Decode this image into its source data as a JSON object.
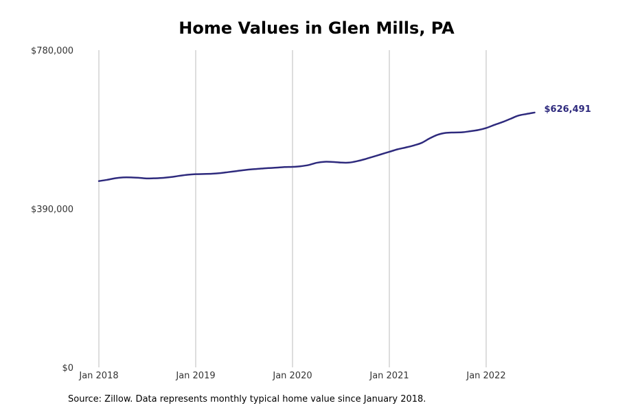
{
  "chart_data": {
    "type": "line",
    "title": "Home Values in Glen Mills, PA",
    "xlabel": "",
    "ylabel": "",
    "grid": "vertical",
    "ylim": [
      0,
      780000
    ],
    "yticks": [
      0,
      390000,
      780000
    ],
    "ytick_labels": [
      "$0",
      "$390,000",
      "$780,000"
    ],
    "xticks": [
      "2018-01",
      "2019-01",
      "2020-01",
      "2021-01",
      "2022-01"
    ],
    "xtick_labels": [
      "Jan 2018",
      "Jan 2019",
      "Jan 2020",
      "Jan 2021",
      "Jan 2022"
    ],
    "line_color": "#2e2a7d",
    "grid_color": "#bbbbbb",
    "end_label": "$626,491",
    "series": [
      {
        "x": [
          "2018-01",
          "2018-02",
          "2018-03",
          "2018-04",
          "2018-05",
          "2018-06",
          "2018-07",
          "2018-08",
          "2018-09",
          "2018-10",
          "2018-11",
          "2018-12",
          "2019-01",
          "2019-02",
          "2019-03",
          "2019-04",
          "2019-05",
          "2019-06",
          "2019-07",
          "2019-08",
          "2019-09",
          "2019-10",
          "2019-11",
          "2019-12",
          "2020-01",
          "2020-02",
          "2020-03",
          "2020-04",
          "2020-05",
          "2020-06",
          "2020-07",
          "2020-08",
          "2020-09",
          "2020-10",
          "2020-11",
          "2020-12",
          "2021-01",
          "2021-02",
          "2021-03",
          "2021-04",
          "2021-05",
          "2021-06",
          "2021-07",
          "2021-08",
          "2021-09",
          "2021-10",
          "2021-11",
          "2021-12",
          "2022-01",
          "2022-02",
          "2022-03",
          "2022-04",
          "2022-05",
          "2022-06",
          "2022-07"
        ],
        "values": [
          458000,
          461000,
          465000,
          467000,
          467000,
          466000,
          464500,
          465000,
          466000,
          468000,
          471000,
          473500,
          475000,
          475500,
          476000,
          477500,
          480000,
          482500,
          485000,
          487000,
          488500,
          490000,
          491000,
          492500,
          493000,
          494500,
          497500,
          503000,
          505500,
          505000,
          503500,
          503500,
          507000,
          512000,
          518000,
          524000,
          530000,
          536000,
          540500,
          545500,
          552000,
          563000,
          572000,
          576500,
          577500,
          578000,
          580500,
          583500,
          588500,
          596000,
          603000,
          611000,
          619000,
          623000,
          626491
        ]
      }
    ]
  },
  "source_note": "Source: Zillow. Data represents monthly typical home value since January 2018."
}
